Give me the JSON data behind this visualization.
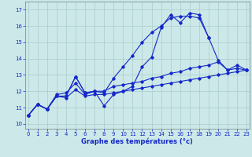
{
  "xlabel": "Graphe des températures (°c)",
  "x_ticks": [
    0,
    1,
    2,
    3,
    4,
    5,
    6,
    7,
    8,
    9,
    10,
    11,
    12,
    13,
    14,
    15,
    16,
    17,
    18,
    19,
    20,
    21,
    22,
    23
  ],
  "y_ticks": [
    10,
    11,
    12,
    13,
    14,
    15,
    16,
    17
  ],
  "xlim": [
    -0.3,
    23.3
  ],
  "ylim": [
    9.7,
    17.5
  ],
  "bg_color": "#cce8e8",
  "line_color": "#1428c8",
  "grid_color": "#aacccc",
  "series": {
    "line1": [
      10.5,
      11.2,
      10.9,
      11.7,
      11.7,
      12.9,
      11.9,
      12.0,
      11.1,
      11.8,
      12.0,
      12.3,
      13.5,
      14.1,
      15.9,
      16.7,
      16.2,
      16.8,
      16.7,
      15.3,
      13.9,
      13.3,
      13.6,
      13.3
    ],
    "line2": [
      10.5,
      11.2,
      10.9,
      11.7,
      11.7,
      12.9,
      11.9,
      12.0,
      11.9,
      12.8,
      13.5,
      14.2,
      15.0,
      15.6,
      16.0,
      16.5,
      16.6,
      16.6,
      16.5,
      15.3,
      null,
      null,
      null,
      null
    ],
    "line3": [
      10.5,
      11.2,
      10.9,
      11.8,
      11.9,
      12.5,
      11.8,
      12.0,
      12.0,
      12.3,
      12.4,
      12.5,
      12.6,
      12.8,
      12.9,
      13.1,
      13.2,
      13.4,
      13.5,
      13.6,
      13.8,
      13.3,
      13.4,
      13.3
    ],
    "line4": [
      10.5,
      11.2,
      10.9,
      11.7,
      11.6,
      12.1,
      11.7,
      11.8,
      11.8,
      11.9,
      12.0,
      12.1,
      12.2,
      12.3,
      12.4,
      12.5,
      12.6,
      12.7,
      12.8,
      12.9,
      13.0,
      13.1,
      13.2,
      13.3
    ]
  },
  "tick_fontsize": 5.0,
  "xlabel_fontsize": 6.0,
  "marker_size": 1.8,
  "linewidth": 0.8
}
